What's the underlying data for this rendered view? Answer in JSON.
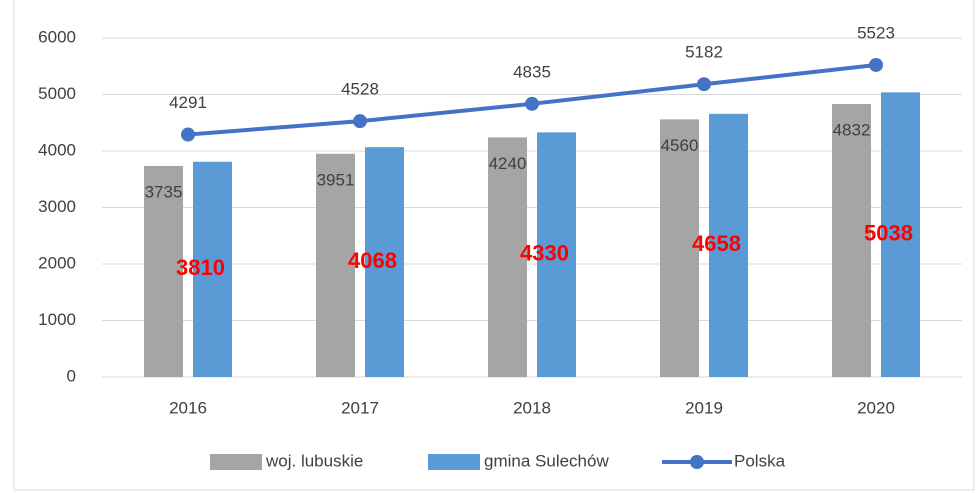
{
  "chart_data": {
    "type": "bar",
    "categories": [
      "2016",
      "2017",
      "2018",
      "2019",
      "2020"
    ],
    "series": [
      {
        "name": "woj. lubuskie",
        "type": "bar",
        "color": "#a5a5a5",
        "label_color": "#404040",
        "values": [
          3735,
          3951,
          4240,
          4560,
          4832
        ]
      },
      {
        "name": "gmina Sulechów",
        "type": "bar",
        "color": "#5b9bd5",
        "label_color": "#ff0000",
        "values": [
          3810,
          4068,
          4330,
          4658,
          5038
        ]
      },
      {
        "name": "Polska",
        "type": "line",
        "color": "#4472c4",
        "label_color": "#404040",
        "values": [
          4291,
          4528,
          4835,
          5182,
          5523
        ]
      }
    ],
    "ylim": [
      0,
      6000
    ],
    "yticks": [
      0,
      1000,
      2000,
      3000,
      4000,
      5000,
      6000
    ],
    "grid": true,
    "legend": "bottom"
  }
}
